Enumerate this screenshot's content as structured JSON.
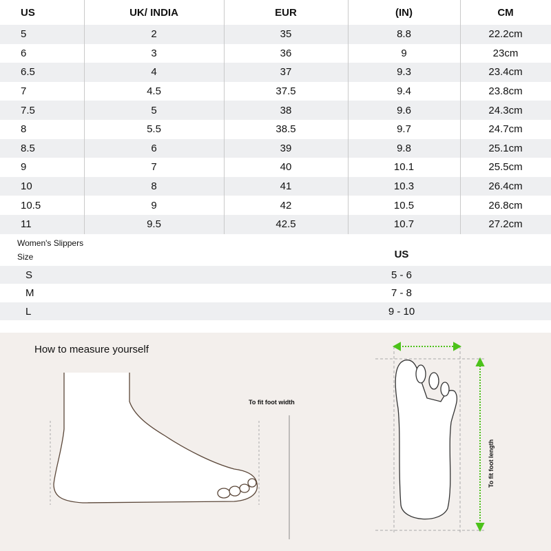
{
  "size_table": {
    "headers": [
      "US",
      "UK/ INDIA",
      "EUR",
      "(IN)",
      "CM"
    ],
    "rows": [
      [
        "5",
        "2",
        "35",
        "8.8",
        "22.2cm"
      ],
      [
        "6",
        "3",
        "36",
        "9",
        "23cm"
      ],
      [
        "6.5",
        "4",
        "37",
        "9.3",
        "23.4cm"
      ],
      [
        "7",
        "4.5",
        "37.5",
        "9.4",
        "23.8cm"
      ],
      [
        "7.5",
        "5",
        "38",
        "9.6",
        "24.3cm"
      ],
      [
        "8",
        "5.5",
        "38.5",
        "9.7",
        "24.7cm"
      ],
      [
        "8.5",
        "6",
        "39",
        "9.8",
        "25.1cm"
      ],
      [
        "9",
        "7",
        "40",
        "10.1",
        "25.5cm"
      ],
      [
        "10",
        "8",
        "41",
        "10.3",
        "26.4cm"
      ],
      [
        "10.5",
        "9",
        "42",
        "10.5",
        "26.8cm"
      ],
      [
        "11",
        "9.5",
        "42.5",
        "10.7",
        "27.2cm"
      ]
    ]
  },
  "slippers": {
    "label1": "Women's Slippers",
    "label2": "Size",
    "us_header": "US",
    "rows": [
      [
        "S",
        "5 - 6"
      ],
      [
        "M",
        "7 - 8"
      ],
      [
        "L",
        "9 - 10"
      ]
    ]
  },
  "measure": {
    "title": "How to measure yourself",
    "foot_width_label": "To fit foot width",
    "foot_length_label": "To fit foot length",
    "arrow_color": "#4cc21a",
    "shade_color": "#eeeff1",
    "panel_color": "#f3efec"
  }
}
